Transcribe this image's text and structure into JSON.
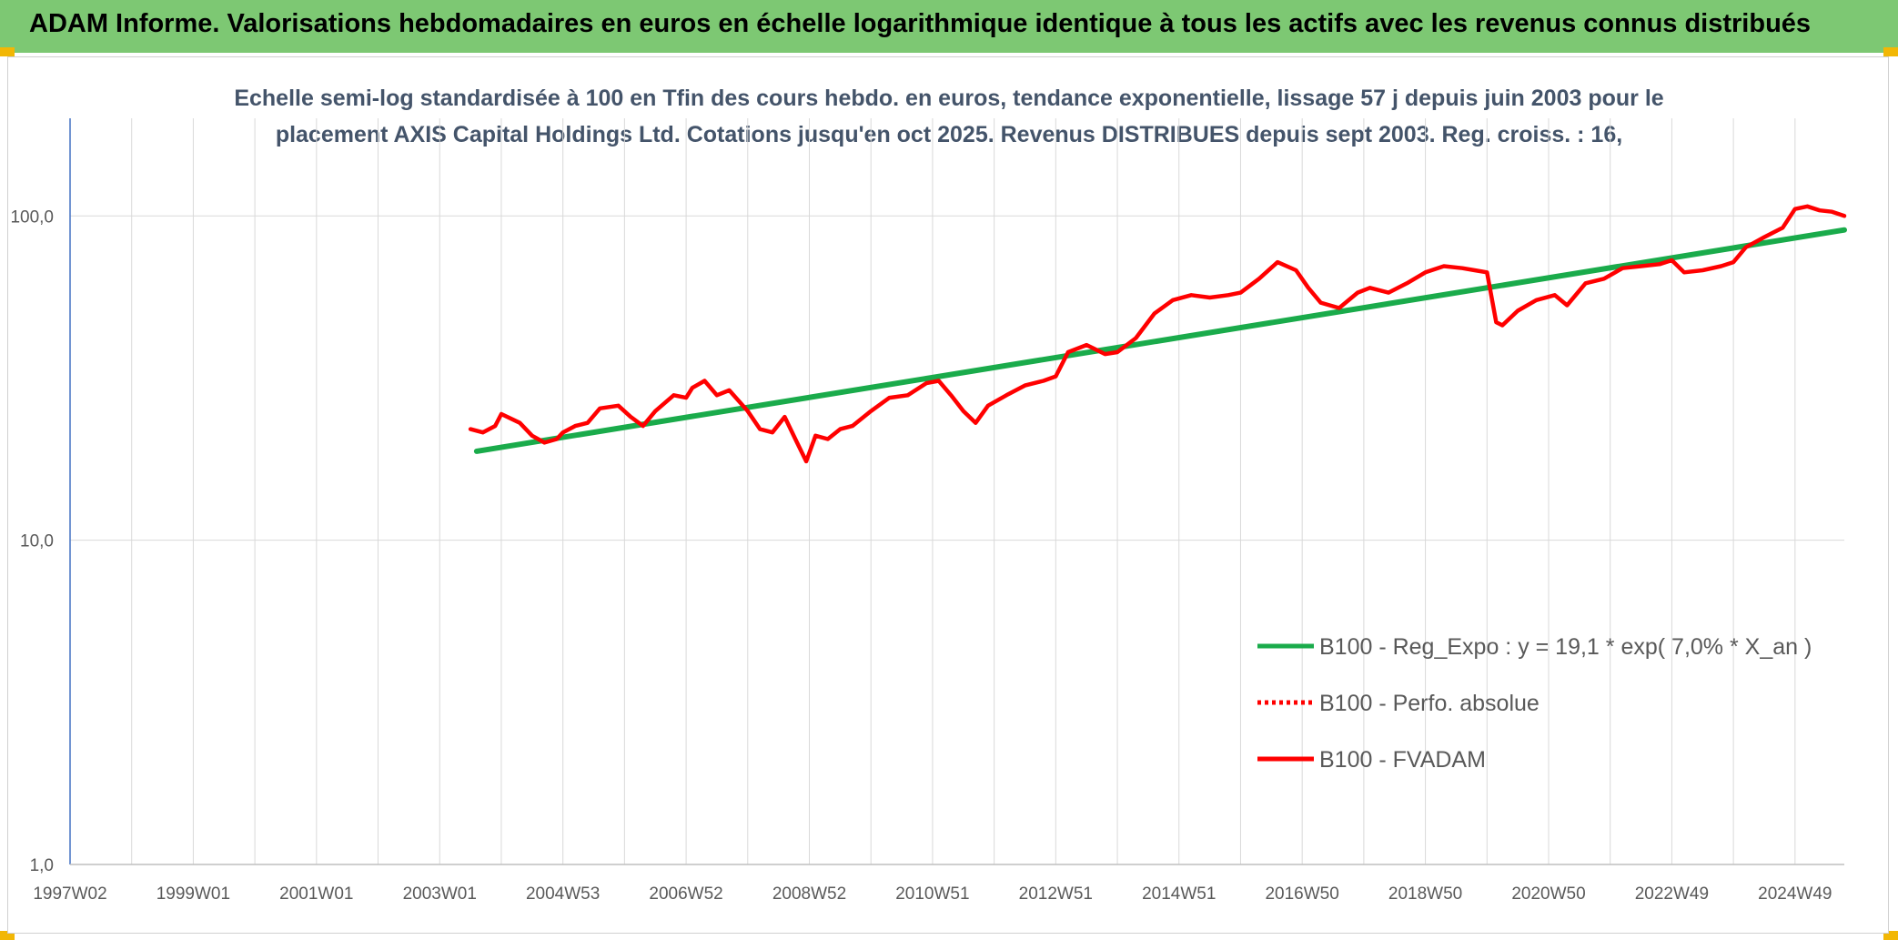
{
  "header": {
    "title": "ADAM Informe. Valorisations hebdomadaires en euros en échelle logarithmique identique à tous les actifs avec les revenus connus distribués"
  },
  "chart_data": {
    "type": "line",
    "title_line1": "Echelle semi-log standardisée à 100 en Tfin des cours hebdo. en euros, tendance exponentielle, lissage 57 j depuis juin 2003 pour le",
    "title_line2": "placement AXIS Capital Holdings Ltd. Cotations jusqu'en oct 2025. Revenus DISTRIBUES depuis sept 2003. Reg. croiss. : 16,",
    "xlabel": "",
    "ylabel": "",
    "y_scale": "log",
    "ylim": [
      1,
      200
    ],
    "xlim": [
      1997.0,
      2025.8
    ],
    "y_ticks": [
      {
        "value": 1,
        "label": "1,0"
      },
      {
        "value": 10,
        "label": "10,0"
      },
      {
        "value": 100,
        "label": "100,0"
      }
    ],
    "x_ticks": [
      {
        "value": 1997.0,
        "label": "1997W02"
      },
      {
        "value": 1999.0,
        "label": "1999W01"
      },
      {
        "value": 2001.0,
        "label": "2001W01"
      },
      {
        "value": 2003.0,
        "label": "2003W01"
      },
      {
        "value": 2005.0,
        "label": "2004W53"
      },
      {
        "value": 2007.0,
        "label": "2006W52"
      },
      {
        "value": 2009.0,
        "label": "2008W52"
      },
      {
        "value": 2011.0,
        "label": "2010W51"
      },
      {
        "value": 2013.0,
        "label": "2012W51"
      },
      {
        "value": 2015.0,
        "label": "2014W51"
      },
      {
        "value": 2017.0,
        "label": "2016W50"
      },
      {
        "value": 2019.0,
        "label": "2018W50"
      },
      {
        "value": 2021.0,
        "label": "2020W50"
      },
      {
        "value": 2023.0,
        "label": "2022W49"
      },
      {
        "value": 2025.0,
        "label": "2024W49"
      }
    ],
    "grid": true,
    "legend_position": "bottom-right",
    "series": [
      {
        "name": "B100 - Reg_Expo : y = 19,1 * exp( 7,0% * X_an )",
        "color": "#1AAB4B",
        "style": "solid",
        "x": [
          2003.6,
          2025.8
        ],
        "y": [
          18.8,
          90.5
        ]
      },
      {
        "name": "B100 - Perfo. absolue",
        "color": "#FF0000",
        "style": "dotted",
        "x": [],
        "y": []
      },
      {
        "name": "B100 - FVADAM",
        "color": "#FF0000",
        "style": "solid",
        "x": [
          2003.5,
          2003.7,
          2003.9,
          2004.0,
          2004.3,
          2004.5,
          2004.7,
          2004.9,
          2005.0,
          2005.2,
          2005.4,
          2005.6,
          2005.9,
          2006.1,
          2006.3,
          2006.5,
          2006.8,
          2007.0,
          2007.1,
          2007.3,
          2007.5,
          2007.7,
          2008.0,
          2008.2,
          2008.4,
          2008.6,
          2008.8,
          2008.95,
          2009.1,
          2009.3,
          2009.5,
          2009.7,
          2010.0,
          2010.3,
          2010.6,
          2010.9,
          2011.1,
          2011.3,
          2011.5,
          2011.7,
          2011.9,
          2012.2,
          2012.5,
          2012.8,
          2013.0,
          2013.2,
          2013.5,
          2013.8,
          2014.0,
          2014.3,
          2014.6,
          2014.9,
          2015.2,
          2015.5,
          2015.8,
          2016.0,
          2016.3,
          2016.6,
          2016.9,
          2017.1,
          2017.3,
          2017.6,
          2017.9,
          2018.1,
          2018.4,
          2018.7,
          2019.0,
          2019.3,
          2019.6,
          2019.8,
          2020.0,
          2020.15,
          2020.25,
          2020.5,
          2020.8,
          2021.1,
          2021.3,
          2021.6,
          2021.9,
          2022.2,
          2022.5,
          2022.8,
          2023.0,
          2023.2,
          2023.5,
          2023.8,
          2024.0,
          2024.2,
          2024.5,
          2024.8,
          2025.0,
          2025.2,
          2025.4,
          2025.6,
          2025.8
        ],
        "y": [
          22.0,
          21.5,
          22.5,
          24.5,
          23.0,
          21.0,
          20.0,
          20.5,
          21.5,
          22.5,
          23.0,
          25.5,
          26.0,
          24.0,
          22.5,
          25.0,
          28.0,
          27.5,
          29.5,
          31.0,
          28.0,
          29.0,
          25.0,
          22.0,
          21.5,
          24.0,
          20.0,
          17.5,
          21.0,
          20.5,
          22.0,
          22.5,
          25.0,
          27.5,
          28.0,
          30.5,
          31.0,
          28.0,
          25.0,
          23.0,
          26.0,
          28.0,
          30.0,
          31.0,
          32.0,
          38.0,
          40.0,
          37.5,
          38.0,
          42.0,
          50.0,
          55.0,
          57.0,
          56.0,
          57.0,
          58.0,
          64.0,
          72.0,
          68.0,
          60.0,
          54.0,
          52.0,
          58.0,
          60.0,
          58.0,
          62.0,
          67.0,
          70.0,
          69.0,
          68.0,
          67.0,
          47.0,
          46.0,
          51.0,
          55.0,
          57.0,
          53.0,
          62.0,
          64.0,
          69.0,
          70.0,
          71.0,
          73.0,
          67.0,
          68.0,
          70.0,
          72.0,
          80.0,
          86.0,
          92.0,
          105.0,
          107.0,
          104.0,
          103.0,
          100.0
        ]
      }
    ]
  }
}
